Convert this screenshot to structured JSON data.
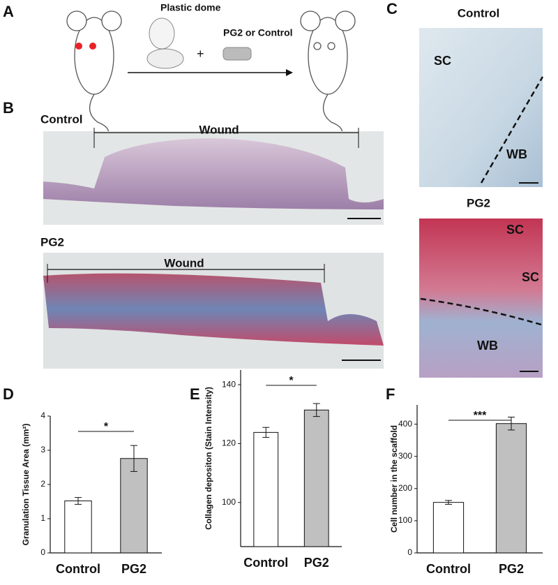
{
  "panels": {
    "labels": [
      "A",
      "B",
      "C",
      "D",
      "E",
      "F"
    ]
  },
  "panel_a": {
    "dome": "Plastic dome",
    "treatment": "PG2 or Control"
  },
  "panel_b": {
    "control": "Control",
    "pg2": "PG2",
    "wound": [
      "Wound",
      "Wound"
    ]
  },
  "panel_c": {
    "control": "Control",
    "pg2": "PG2",
    "sc": [
      "SC",
      "SC",
      "SC"
    ],
    "wb": [
      "WB",
      "WB"
    ]
  },
  "chart_data": [
    {
      "type": "bar",
      "y_label": "Granulation Tissue Area (mm²)",
      "categories": [
        "Control",
        "PG2"
      ],
      "values": [
        1.52,
        2.76
      ],
      "errors": [
        0.1,
        0.38
      ],
      "colors": [
        "#ffffff",
        "#c0c0c0"
      ],
      "ylim": [
        0,
        4
      ],
      "yticks": [
        0,
        1,
        2,
        3,
        4
      ],
      "significance": "*"
    },
    {
      "type": "bar",
      "y_label": "Collagen depositon (Stain Intensity)",
      "categories": [
        "Control",
        "PG2"
      ],
      "values": [
        123.8,
        131.4
      ],
      "errors": [
        1.7,
        2.2
      ],
      "colors": [
        "#ffffff",
        "#c0c0c0"
      ],
      "ylim": [
        85,
        145
      ],
      "yticks": [
        100,
        120,
        140
      ],
      "significance": "*"
    },
    {
      "type": "bar",
      "y_label": "Cell number in the scaffold",
      "categories": [
        "Control",
        "PG2"
      ],
      "values": [
        157,
        402
      ],
      "errors": [
        6,
        20
      ],
      "colors": [
        "#ffffff",
        "#c0c0c0"
      ],
      "ylim": [
        0,
        460
      ],
      "yticks": [
        0,
        100,
        200,
        300,
        400
      ],
      "significance": "***"
    }
  ]
}
